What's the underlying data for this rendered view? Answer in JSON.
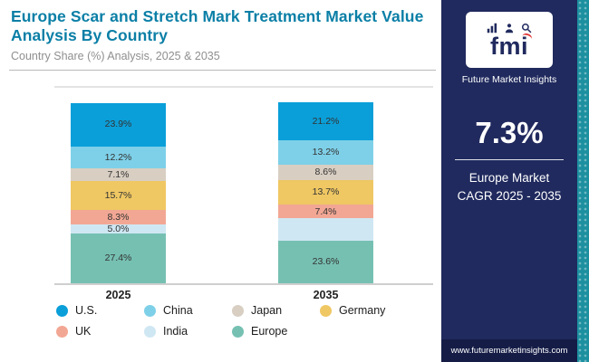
{
  "chart_data": {
    "type": "bar",
    "stacked": true,
    "title": "Europe Scar and Stretch Mark Treatment Market Value Analysis By Country",
    "subtitle": "Country Share (%) Analysis, 2025 & 2035",
    "categories": [
      "2025",
      "2035"
    ],
    "value_suffix": "%",
    "ylim": [
      0,
      100
    ],
    "legend_position": "bottom",
    "series": [
      {
        "name": "U.S.",
        "color": "#0a9fd9",
        "values": [
          23.9,
          21.2
        ],
        "labels": [
          "23.9%",
          "21.2%"
        ]
      },
      {
        "name": "China",
        "color": "#7ed0e8",
        "values": [
          12.2,
          13.2
        ],
        "labels": [
          "12.2%",
          "13.2%"
        ]
      },
      {
        "name": "Japan",
        "color": "#d8cec2",
        "values": [
          7.1,
          8.6
        ],
        "labels": [
          "7.1%",
          "8.6%"
        ]
      },
      {
        "name": "Germany",
        "color": "#efc763",
        "values": [
          15.7,
          13.7
        ],
        "labels": [
          "15.7%",
          "13.7%"
        ]
      },
      {
        "name": "UK",
        "color": "#f2a794",
        "values": [
          8.3,
          7.4
        ],
        "labels": [
          "8.3%",
          "7.4%"
        ]
      },
      {
        "name": "India",
        "color": "#cfe7f3",
        "values": [
          5.0,
          12.3
        ],
        "labels": [
          "5.0%",
          ""
        ]
      },
      {
        "name": "Europe",
        "color": "#76c0b2",
        "values": [
          27.4,
          23.6
        ],
        "labels": [
          "27.4%",
          "23.6%"
        ]
      }
    ]
  },
  "panel": {
    "logo_text": "fmi",
    "logo_subtitle": "Future Market Insights",
    "logo_icons": [
      {
        "name": "bar-chart-icon"
      },
      {
        "name": "person-icon"
      },
      {
        "name": "magnifier-icon"
      }
    ],
    "cagr_value": "7.3%",
    "cagr_label_line1": "Europe Market",
    "cagr_label_line2": "CAGR 2025 - 2035",
    "website": "www.futuremarketinsights.com",
    "colors": {
      "panel_bg": "#202a5e",
      "footer_bg": "#151d47",
      "pattern_teal": "#1d90a0",
      "title_teal": "#0b7fa6"
    }
  }
}
